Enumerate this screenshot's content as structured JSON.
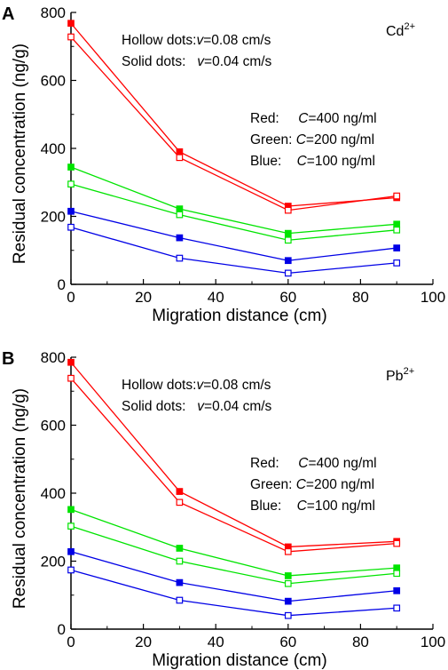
{
  "chart_data": [
    {
      "type": "line",
      "panel_label": "A",
      "ion_label": "Cd",
      "ion_charge": "2+",
      "xlabel": "Migration distance (cm)",
      "ylabel": "Residual concentration (ng/g)",
      "xlim": [
        0,
        100
      ],
      "ylim": [
        0,
        800
      ],
      "x_ticks": [
        0,
        20,
        40,
        60,
        80,
        100
      ],
      "y_ticks": [
        0,
        200,
        400,
        600,
        800
      ],
      "grid": false,
      "annotations": {
        "hollow_prefix": "Hollow dots:",
        "hollow_v": "v",
        "hollow_value": "=0.08 cm/s",
        "solid_prefix": "Solid dots:   ",
        "solid_v": "v",
        "solid_value": "=0.04 cm/s",
        "red_prefix": "Red:     ",
        "red_c": "C",
        "red_value": "=400 ng/ml",
        "green_prefix": "Green: ",
        "green_c": "C",
        "green_value": "=200 ng/ml",
        "blue_prefix": "Blue:    ",
        "blue_c": "C",
        "blue_value": "=100 ng/ml"
      },
      "x": [
        0,
        30,
        60,
        90
      ],
      "series": [
        {
          "color": "#ff0000",
          "marker": "solid",
          "values": [
            768,
            390,
            230,
            255
          ]
        },
        {
          "color": "#ff0000",
          "marker": "hollow",
          "values": [
            728,
            373,
            218,
            260
          ]
        },
        {
          "color": "#00e400",
          "marker": "solid",
          "values": [
            345,
            222,
            150,
            177
          ]
        },
        {
          "color": "#00e400",
          "marker": "hollow",
          "values": [
            295,
            205,
            130,
            160
          ]
        },
        {
          "color": "#0000e6",
          "marker": "solid",
          "values": [
            215,
            137,
            70,
            107
          ]
        },
        {
          "color": "#0000e6",
          "marker": "hollow",
          "values": [
            168,
            77,
            33,
            63
          ]
        }
      ]
    },
    {
      "type": "line",
      "panel_label": "B",
      "ion_label": "Pb",
      "ion_charge": "2+",
      "xlabel": "Migration distance (cm)",
      "ylabel": "Residual concentration (ng/g)",
      "xlim": [
        0,
        100
      ],
      "ylim": [
        0,
        800
      ],
      "x_ticks": [
        0,
        20,
        40,
        60,
        80,
        100
      ],
      "y_ticks": [
        0,
        200,
        400,
        600,
        800
      ],
      "grid": false,
      "annotations": {
        "hollow_prefix": "Hollow dots:",
        "hollow_v": "v",
        "hollow_value": "=0.08 cm/s",
        "solid_prefix": "Solid dots:   ",
        "solid_v": "v",
        "solid_value": "=0.04 cm/s",
        "red_prefix": "Red:     ",
        "red_c": "C",
        "red_value": "=400 ng/ml",
        "green_prefix": "Green: ",
        "green_c": "C",
        "green_value": "=200 ng/ml",
        "blue_prefix": "Blue:    ",
        "blue_c": "C",
        "blue_value": "=100 ng/ml"
      },
      "x": [
        0,
        30,
        60,
        90
      ],
      "series": [
        {
          "color": "#ff0000",
          "marker": "solid",
          "values": [
            785,
            405,
            242,
            258
          ]
        },
        {
          "color": "#ff0000",
          "marker": "hollow",
          "values": [
            738,
            373,
            228,
            252
          ]
        },
        {
          "color": "#00e400",
          "marker": "solid",
          "values": [
            352,
            238,
            157,
            180
          ]
        },
        {
          "color": "#00e400",
          "marker": "hollow",
          "values": [
            303,
            200,
            134,
            164
          ]
        },
        {
          "color": "#0000e6",
          "marker": "solid",
          "values": [
            228,
            137,
            82,
            113
          ]
        },
        {
          "color": "#0000e6",
          "marker": "hollow",
          "values": [
            174,
            85,
            40,
            62
          ]
        }
      ]
    }
  ]
}
